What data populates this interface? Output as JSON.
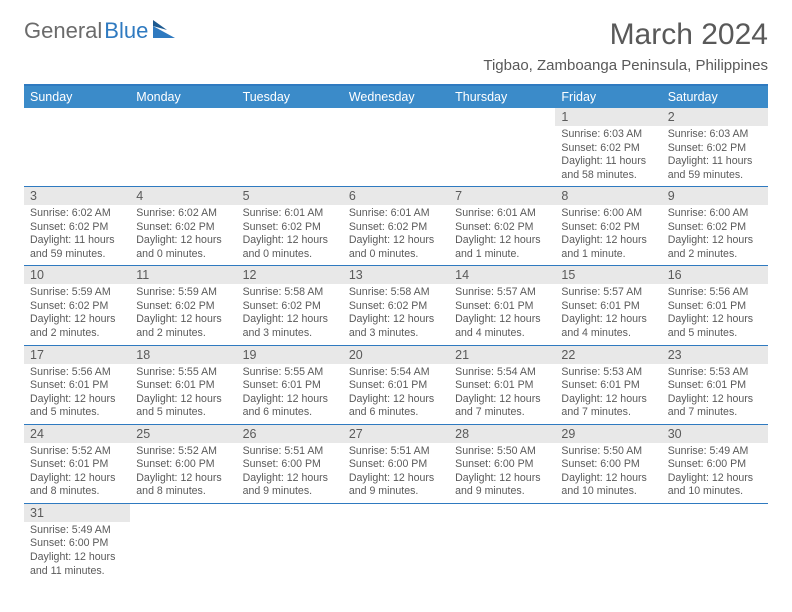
{
  "logo": {
    "part1": "General",
    "part2": "Blue"
  },
  "title": "March 2024",
  "location": "Tigbao, Zamboanga Peninsula, Philippines",
  "colors": {
    "header_bar": "#3b8bc9",
    "accent_line": "#2f7ac0",
    "daynum_bg": "#e8e8e8",
    "text_muted": "#5a5a5a",
    "text_gray": "#595959"
  },
  "dow": [
    "Sunday",
    "Monday",
    "Tuesday",
    "Wednesday",
    "Thursday",
    "Friday",
    "Saturday"
  ],
  "weeks": [
    [
      {
        "empty": true
      },
      {
        "empty": true
      },
      {
        "empty": true
      },
      {
        "empty": true
      },
      {
        "empty": true
      },
      {
        "n": "1",
        "sunrise": "Sunrise: 6:03 AM",
        "sunset": "Sunset: 6:02 PM",
        "daylight": "Daylight: 11 hours and 58 minutes."
      },
      {
        "n": "2",
        "sunrise": "Sunrise: 6:03 AM",
        "sunset": "Sunset: 6:02 PM",
        "daylight": "Daylight: 11 hours and 59 minutes."
      }
    ],
    [
      {
        "n": "3",
        "sunrise": "Sunrise: 6:02 AM",
        "sunset": "Sunset: 6:02 PM",
        "daylight": "Daylight: 11 hours and 59 minutes."
      },
      {
        "n": "4",
        "sunrise": "Sunrise: 6:02 AM",
        "sunset": "Sunset: 6:02 PM",
        "daylight": "Daylight: 12 hours and 0 minutes."
      },
      {
        "n": "5",
        "sunrise": "Sunrise: 6:01 AM",
        "sunset": "Sunset: 6:02 PM",
        "daylight": "Daylight: 12 hours and 0 minutes."
      },
      {
        "n": "6",
        "sunrise": "Sunrise: 6:01 AM",
        "sunset": "Sunset: 6:02 PM",
        "daylight": "Daylight: 12 hours and 0 minutes."
      },
      {
        "n": "7",
        "sunrise": "Sunrise: 6:01 AM",
        "sunset": "Sunset: 6:02 PM",
        "daylight": "Daylight: 12 hours and 1 minute."
      },
      {
        "n": "8",
        "sunrise": "Sunrise: 6:00 AM",
        "sunset": "Sunset: 6:02 PM",
        "daylight": "Daylight: 12 hours and 1 minute."
      },
      {
        "n": "9",
        "sunrise": "Sunrise: 6:00 AM",
        "sunset": "Sunset: 6:02 PM",
        "daylight": "Daylight: 12 hours and 2 minutes."
      }
    ],
    [
      {
        "n": "10",
        "sunrise": "Sunrise: 5:59 AM",
        "sunset": "Sunset: 6:02 PM",
        "daylight": "Daylight: 12 hours and 2 minutes."
      },
      {
        "n": "11",
        "sunrise": "Sunrise: 5:59 AM",
        "sunset": "Sunset: 6:02 PM",
        "daylight": "Daylight: 12 hours and 2 minutes."
      },
      {
        "n": "12",
        "sunrise": "Sunrise: 5:58 AM",
        "sunset": "Sunset: 6:02 PM",
        "daylight": "Daylight: 12 hours and 3 minutes."
      },
      {
        "n": "13",
        "sunrise": "Sunrise: 5:58 AM",
        "sunset": "Sunset: 6:02 PM",
        "daylight": "Daylight: 12 hours and 3 minutes."
      },
      {
        "n": "14",
        "sunrise": "Sunrise: 5:57 AM",
        "sunset": "Sunset: 6:01 PM",
        "daylight": "Daylight: 12 hours and 4 minutes."
      },
      {
        "n": "15",
        "sunrise": "Sunrise: 5:57 AM",
        "sunset": "Sunset: 6:01 PM",
        "daylight": "Daylight: 12 hours and 4 minutes."
      },
      {
        "n": "16",
        "sunrise": "Sunrise: 5:56 AM",
        "sunset": "Sunset: 6:01 PM",
        "daylight": "Daylight: 12 hours and 5 minutes."
      }
    ],
    [
      {
        "n": "17",
        "sunrise": "Sunrise: 5:56 AM",
        "sunset": "Sunset: 6:01 PM",
        "daylight": "Daylight: 12 hours and 5 minutes."
      },
      {
        "n": "18",
        "sunrise": "Sunrise: 5:55 AM",
        "sunset": "Sunset: 6:01 PM",
        "daylight": "Daylight: 12 hours and 5 minutes."
      },
      {
        "n": "19",
        "sunrise": "Sunrise: 5:55 AM",
        "sunset": "Sunset: 6:01 PM",
        "daylight": "Daylight: 12 hours and 6 minutes."
      },
      {
        "n": "20",
        "sunrise": "Sunrise: 5:54 AM",
        "sunset": "Sunset: 6:01 PM",
        "daylight": "Daylight: 12 hours and 6 minutes."
      },
      {
        "n": "21",
        "sunrise": "Sunrise: 5:54 AM",
        "sunset": "Sunset: 6:01 PM",
        "daylight": "Daylight: 12 hours and 7 minutes."
      },
      {
        "n": "22",
        "sunrise": "Sunrise: 5:53 AM",
        "sunset": "Sunset: 6:01 PM",
        "daylight": "Daylight: 12 hours and 7 minutes."
      },
      {
        "n": "23",
        "sunrise": "Sunrise: 5:53 AM",
        "sunset": "Sunset: 6:01 PM",
        "daylight": "Daylight: 12 hours and 7 minutes."
      }
    ],
    [
      {
        "n": "24",
        "sunrise": "Sunrise: 5:52 AM",
        "sunset": "Sunset: 6:01 PM",
        "daylight": "Daylight: 12 hours and 8 minutes."
      },
      {
        "n": "25",
        "sunrise": "Sunrise: 5:52 AM",
        "sunset": "Sunset: 6:00 PM",
        "daylight": "Daylight: 12 hours and 8 minutes."
      },
      {
        "n": "26",
        "sunrise": "Sunrise: 5:51 AM",
        "sunset": "Sunset: 6:00 PM",
        "daylight": "Daylight: 12 hours and 9 minutes."
      },
      {
        "n": "27",
        "sunrise": "Sunrise: 5:51 AM",
        "sunset": "Sunset: 6:00 PM",
        "daylight": "Daylight: 12 hours and 9 minutes."
      },
      {
        "n": "28",
        "sunrise": "Sunrise: 5:50 AM",
        "sunset": "Sunset: 6:00 PM",
        "daylight": "Daylight: 12 hours and 9 minutes."
      },
      {
        "n": "29",
        "sunrise": "Sunrise: 5:50 AM",
        "sunset": "Sunset: 6:00 PM",
        "daylight": "Daylight: 12 hours and 10 minutes."
      },
      {
        "n": "30",
        "sunrise": "Sunrise: 5:49 AM",
        "sunset": "Sunset: 6:00 PM",
        "daylight": "Daylight: 12 hours and 10 minutes."
      }
    ],
    [
      {
        "n": "31",
        "sunrise": "Sunrise: 5:49 AM",
        "sunset": "Sunset: 6:00 PM",
        "daylight": "Daylight: 12 hours and 11 minutes."
      },
      {
        "empty": true
      },
      {
        "empty": true
      },
      {
        "empty": true
      },
      {
        "empty": true
      },
      {
        "empty": true
      },
      {
        "empty": true
      }
    ]
  ]
}
